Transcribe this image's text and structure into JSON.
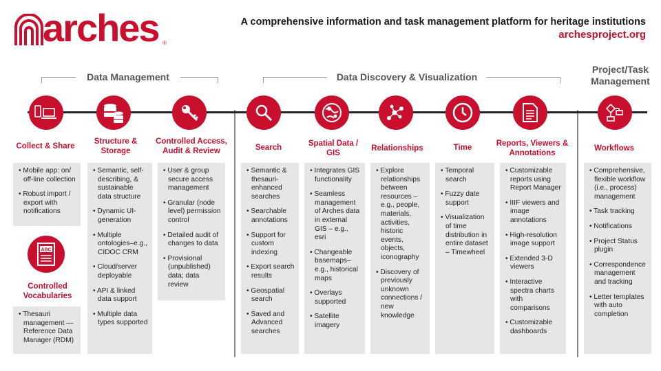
{
  "header": {
    "logo_text": "arches",
    "tagline": "A comprehensive information and task management platform for heritage institutions",
    "url": "archesproject.org"
  },
  "groups": [
    {
      "title": "Data Management"
    },
    {
      "title": "Data Discovery & Visualization"
    },
    {
      "title": "Project/Task Management"
    }
  ],
  "colors": {
    "accent": "#c8102e",
    "panel": "#e6e6e6",
    "timeline": "#222222"
  },
  "columns": [
    {
      "title": "Collect & Share",
      "icon": "mobile-laptop-icon",
      "items": [
        "Mobile app: on/ off-line collection",
        "Robust import / export with notifications"
      ]
    },
    {
      "title": "Structure & Storage",
      "icon": "database-icon",
      "items": [
        "Semantic, self-describing, & sustainable data structure",
        "Dynamic UI-generation",
        "Multiple ontologies–e.g., CIDOC CRM",
        "Cloud/server deployable",
        "API & linked data support",
        "Multiple data types supported"
      ]
    },
    {
      "title": "Controlled Access, Audit & Review",
      "icon": "key-icon",
      "items": [
        "User & group secure access management",
        "Granular (node level) permission control",
        "Detailed audit of changes to data",
        "Provisional (unpublished) data; data review"
      ]
    },
    {
      "title": "Search",
      "icon": "search-icon",
      "items": [
        "Semantic & thesauri-enhanced searches",
        "Searchable annotations",
        "Support for custom indexing",
        "Export search results",
        "Geospatial search",
        "Saved and Advanced searches"
      ]
    },
    {
      "title": "Spatial Data / GIS",
      "icon": "globe-pin-icon",
      "items": [
        "Integrates GIS functionality",
        "Seamless management of Arches data in external GIS – e.g., esri",
        "Changeable basemaps–e.g., historical maps",
        "Overlays supported",
        "Satellite imagery"
      ]
    },
    {
      "title": "Relationships",
      "icon": "network-icon",
      "items": [
        "Explore relationships between resources – e.g., people, materials, activities, historic events, objects, iconography",
        "Discovery of previously unknown connections / new knowledge"
      ]
    },
    {
      "title": "Time",
      "icon": "clock-icon",
      "items": [
        "Temporal search",
        "Fuzzy date support",
        "Visualization of time distribution in entire dataset – Timewheel"
      ]
    },
    {
      "title": "Reports, Viewers & Annotations",
      "icon": "document-icon",
      "items": [
        "Customizable reports using Report Manager",
        "IIIF viewers and image annotations",
        "High-resolution image support",
        "Extended 3-D viewers",
        "Interactive spectra charts with comparisons",
        "Customizable dashboards"
      ]
    },
    {
      "title": "Workflows",
      "icon": "flowchart-icon",
      "items": [
        "Comprehensive, flexible workflow (i.e., process) management",
        "Task tracking",
        "Notifications",
        "Project Status plugin",
        "Correspondence management and tracking",
        "Letter templates with auto completion"
      ]
    }
  ],
  "vocab": {
    "title": "Controlled Vocabularies",
    "icon_text": "ABC",
    "items": [
      "Thesauri management — Reference Data Manager (RDM)"
    ]
  }
}
